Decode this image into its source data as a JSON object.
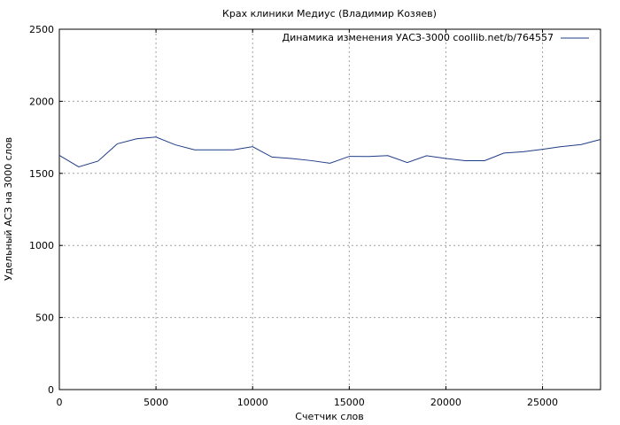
{
  "chart_data": {
    "type": "line",
    "title": "Крах клиники Медиус (Владимир Козяев)",
    "xlabel": "Счетчик слов",
    "ylabel": "Удельный АСЗ на 3000 слов",
    "xlim": [
      0,
      28000
    ],
    "ylim": [
      0,
      2500
    ],
    "xticks": [
      0,
      5000,
      10000,
      15000,
      20000,
      25000
    ],
    "yticks": [
      0,
      500,
      1000,
      1500,
      2000,
      2500
    ],
    "grid": true,
    "legend_position": "top-right",
    "series": [
      {
        "name": "Динамика изменения УАСЗ-3000 coollib.net/b/764557",
        "color": "#1f3c88",
        "x": [
          0,
          1000,
          2000,
          3000,
          4000,
          5000,
          6000,
          7000,
          8000,
          9000,
          10000,
          11000,
          12000,
          13000,
          14000,
          15000,
          16000,
          17000,
          18000,
          19000,
          20000,
          21000,
          22000,
          23000,
          24000,
          25000,
          26000,
          27000,
          28000
        ],
        "y": [
          1625,
          1545,
          1585,
          1705,
          1740,
          1752,
          1698,
          1663,
          1663,
          1663,
          1685,
          1613,
          1603,
          1589,
          1570,
          1618,
          1617,
          1623,
          1575,
          1622,
          1603,
          1588,
          1588,
          1641,
          1650,
          1667,
          1686,
          1700,
          1735
        ]
      }
    ]
  }
}
